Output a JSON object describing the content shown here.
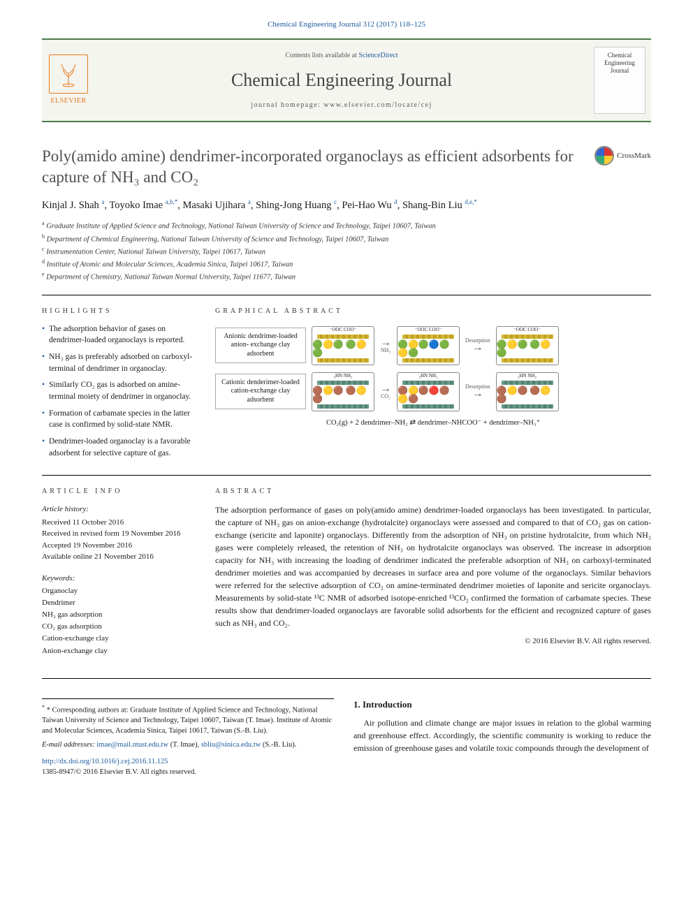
{
  "citation": "Chemical Engineering Journal 312 (2017) 118–125",
  "header": {
    "contents_prefix": "Contents lists available at ",
    "contents_link": "ScienceDirect",
    "journal": "Chemical Engineering Journal",
    "homepage": "journal homepage: www.elsevier.com/locate/cej",
    "publisher": "ELSEVIER",
    "cover_text": "Chemical Engineering Journal"
  },
  "title": "Poly(amido amine) dendrimer-incorporated organoclays as efficient adsorbents for capture of NH₃ and CO₂",
  "crossmark": "CrossMark",
  "authors_html": "Kinjal J. Shah <sup>a</sup>, Toyoko Imae <sup>a,b,*</sup>, Masaki Ujihara <sup>a</sup>, Shing-Jong Huang <sup>c</sup>, Pei-Hao Wu <sup>d</sup>, Shang-Bin Liu <sup>d,e,*</sup>",
  "affiliations": [
    "a Graduate Institute of Applied Science and Technology, National Taiwan University of Science and Technology, Taipei 10607, Taiwan",
    "b Department of Chemical Engineering, National Taiwan University of Science and Technology, Taipei 10607, Taiwan",
    "c Instrumentation Center, National Taiwan University, Taipei 10617, Taiwan",
    "d Institute of Atomic and Molecular Sciences, Academia Sinica, Taipei 10617, Taiwan",
    "e Department of Chemistry, National Taiwan Normal University, Taipei 11677, Taiwan"
  ],
  "highlights_head": "HIGHLIGHTS",
  "highlights": [
    "The adsorption behavior of gases on dendrimer-loaded organoclays is reported.",
    "NH₃ gas is preferably adsorbed on carboxyl-terminal of dendrimer in organoclay.",
    "Similarly CO₂ gas is adsorbed on amine-terminal moiety of dendrimer in organoclay.",
    "Formation of carbamate species in the latter case is confirmed by solid-state NMR.",
    "Dendrimer-loaded organoclay is a favorable adsorbent for selective capture of gas."
  ],
  "ga_head": "GRAPHICAL ABSTRACT",
  "ga": {
    "labels": [
      "Anionic dendrimer-loaded anion- exchange clay adsorbent",
      "Cationic denderimer-loaded cation-exchange clay adsorbent"
    ],
    "gas": [
      "NH₃",
      "CO₂"
    ],
    "arrows": [
      "Adsorption",
      "Desorption"
    ],
    "equation": "CO₂(g) + 2 dendrimer–NH₂ ⇄ dendrimer–NHCOO⁻ + dendrimer–NH₃⁺",
    "coo_label": "⁻OOC  COO⁻",
    "nh2_label": "₂HN  NH₂",
    "colors": {
      "anion_clay": "#d4b838",
      "cation_clay": "#6a9a8a",
      "nh3_mol": "#3a7a3a",
      "co2_mol": "#c03030",
      "core": "#f0b030"
    }
  },
  "article_info_head": "ARTICLE INFO",
  "history_head": "Article history:",
  "history": [
    "Received 11 October 2016",
    "Received in revised form 19 November 2016",
    "Accepted 19 November 2016",
    "Available online 21 November 2016"
  ],
  "keywords_head": "Keywords:",
  "keywords": [
    "Organoclay",
    "Dendrimer",
    "NH₃ gas adsorption",
    "CO₂ gas adsorption",
    "Cation-exchange clay",
    "Anion-exchange clay"
  ],
  "abstract_head": "ABSTRACT",
  "abstract": "The adsorption performance of gases on poly(amido amine) dendrimer-loaded organoclays has been investigated. In particular, the capture of NH₃ gas on anion-exchange (hydrotalcite) organoclays were assessed and compared to that of CO₂ gas on cation-exchange (sericite and laponite) organoclays. Differently from the adsorption of NH₃ on pristine hydrotalcite, from which NH₃ gases were completely released, the retention of NH₃ on hydrotalcite organoclays was observed. The increase in adsorption capacity for NH₃ with increasing the loading of dendrimer indicated the preferable adsorption of NH₃ on carboxyl-terminated dendrimer moieties and was accompanied by decreases in surface area and pore volume of the organoclays. Similar behaviors were referred for the selective adsorption of CO₂ on amine-terminated dendrimer moieties of laponite and sericite organoclays. Measurements by solid-state ¹³C NMR of adsorbed isotope-enriched ¹³CO₂ confirmed the formation of carbamate species. These results show that dendrimer-loaded organoclays are favorable solid adsorbents for the efficient and recognized capture of gases such as NH₃ and CO₂.",
  "copyright": "© 2016 Elsevier B.V. All rights reserved.",
  "corr_label": "* Corresponding authors at:",
  "corr_text": " Graduate Institute of Applied Science and Technology, National Taiwan University of Science and Technology, Taipei 10607, Taiwan (T. Imae). Institute of Atomic and Molecular Sciences, Academia Sinica, Taipei 10617, Taiwan (S.-B. Liu).",
  "email_label": "E-mail addresses: ",
  "emails": [
    {
      "addr": "imae@mail.ntust.edu.tw",
      "who": " (T. Imae), "
    },
    {
      "addr": "sbliu@sinica.edu.tw",
      "who": " (S.-B. Liu)."
    }
  ],
  "doi": "http://dx.doi.org/10.1016/j.cej.2016.11.125",
  "issn_line": "1385-8947/© 2016 Elsevier B.V. All rights reserved.",
  "intro_head": "1. Introduction",
  "intro_text": "Air pollution and climate change are major issues in relation to the global warming and greenhouse effect. Accordingly, the scientific community is working to reduce the emission of greenhouse gases and volatile toxic compounds through the development of"
}
